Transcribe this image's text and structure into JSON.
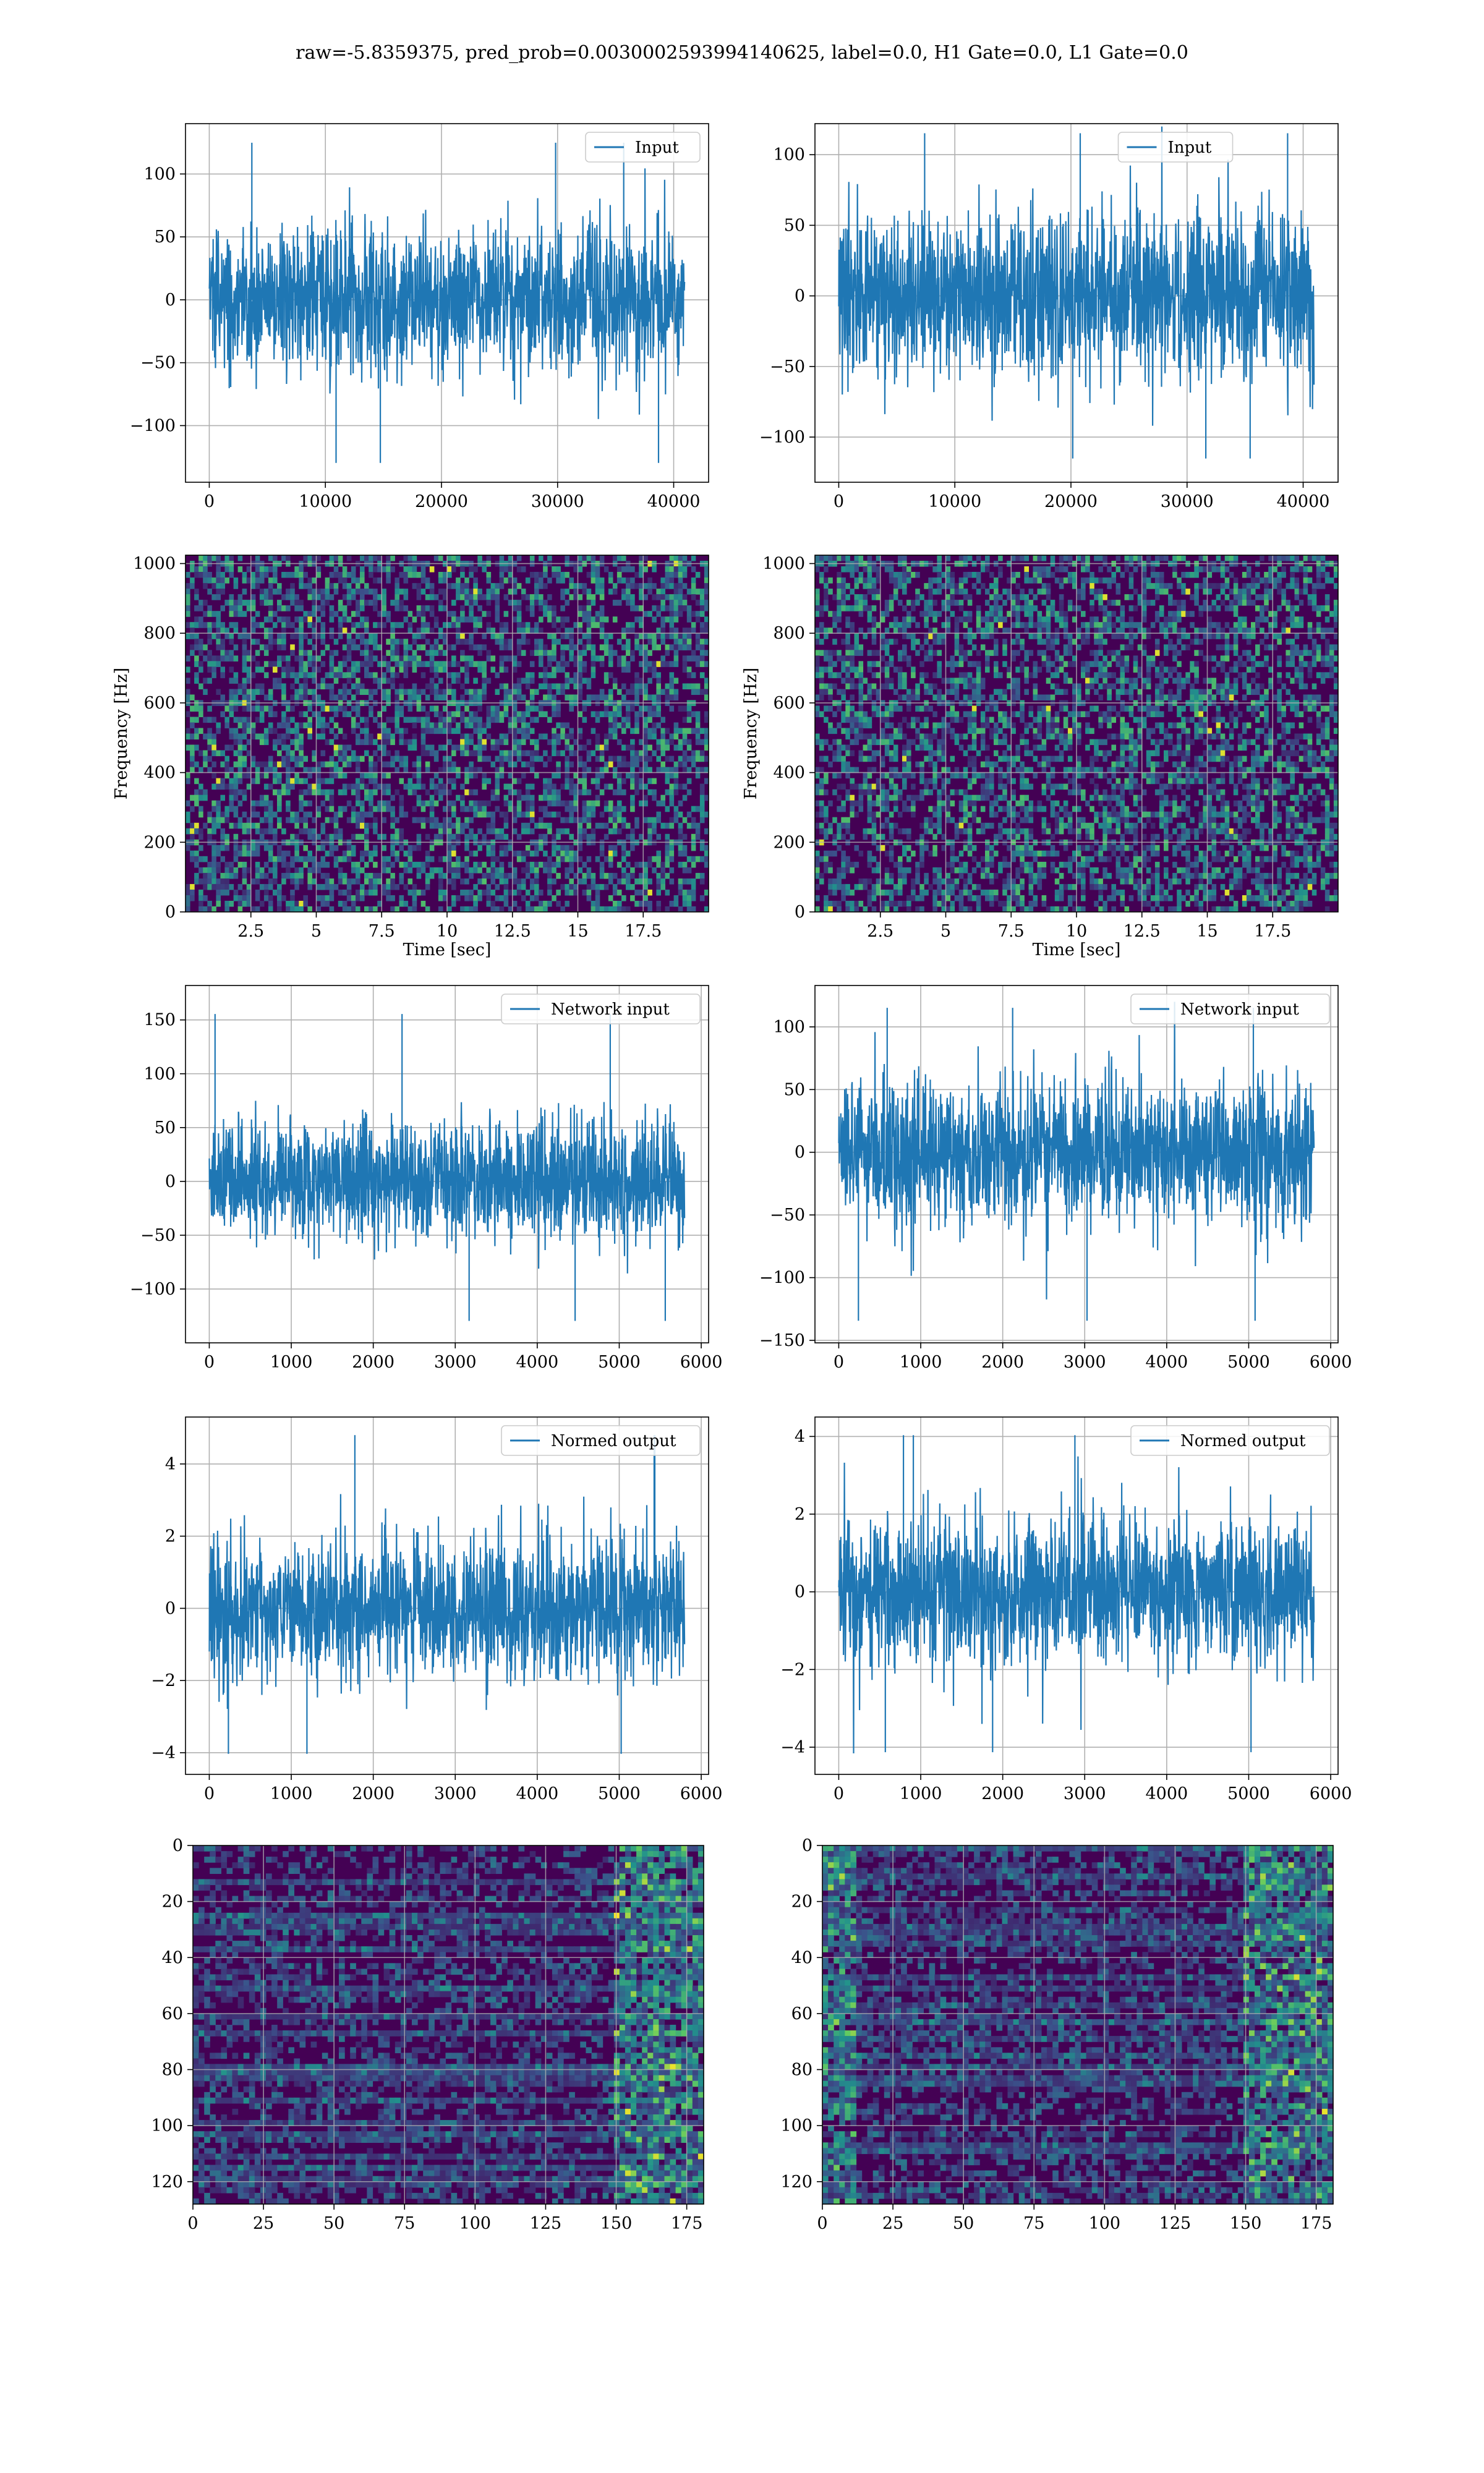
{
  "suptitle": "raw=-5.8359375, pred_prob=0.0030002593994140625, label=0.0, H1 Gate=0.0, L1 Gate=0.0",
  "colors": {
    "series": "#1f77b4",
    "grid": "#b0b0b0",
    "axes": "#000000",
    "viridis_low": "#440154",
    "viridis_mid": "#21918c",
    "viridis_high": "#fde725"
  },
  "chart_data": [
    {
      "id": "input-h1",
      "type": "line",
      "legend": [
        "Input"
      ],
      "legend_position": "top-right",
      "xlim": [
        -2048,
        43008
      ],
      "ylim": [
        -145,
        140
      ],
      "xticks": [
        0,
        10000,
        20000,
        30000,
        40000
      ],
      "yticks": [
        -100,
        -50,
        0,
        50,
        100
      ],
      "grid": true,
      "series": [
        {
          "name": "Input",
          "n_samples": 40960,
          "approx_std": 28,
          "y_min": -135,
          "y_max": 130
        }
      ]
    },
    {
      "id": "input-l1",
      "type": "line",
      "legend": [
        "Input"
      ],
      "legend_position": "top-center",
      "xlim": [
        -2048,
        43008
      ],
      "ylim": [
        -132,
        122
      ],
      "xticks": [
        0,
        10000,
        20000,
        30000,
        40000
      ],
      "yticks": [
        -100,
        -50,
        0,
        50,
        100
      ],
      "grid": true,
      "series": [
        {
          "name": "Input",
          "n_samples": 40960,
          "approx_std": 28,
          "y_min": -120,
          "y_max": 120
        }
      ]
    },
    {
      "id": "spectrogram-h1",
      "type": "heatmap",
      "colormap": "viridis",
      "xlabel": "Time [sec]",
      "ylabel": "Frequency [Hz]",
      "xlim": [
        0,
        20
      ],
      "ylim": [
        0,
        1024
      ],
      "xticks": [
        2.5,
        5.0,
        7.5,
        10.0,
        12.5,
        15.0,
        17.5
      ],
      "yticks": [
        0,
        200,
        400,
        600,
        800,
        1000
      ],
      "grid": true
    },
    {
      "id": "spectrogram-l1",
      "type": "heatmap",
      "colormap": "viridis",
      "xlabel": "Time [sec]",
      "ylabel": "Frequency [Hz]",
      "xlim": [
        0,
        20
      ],
      "ylim": [
        0,
        1024
      ],
      "xticks": [
        2.5,
        5.0,
        7.5,
        10.0,
        12.5,
        15.0,
        17.5
      ],
      "yticks": [
        0,
        200,
        400,
        600,
        800,
        1000
      ],
      "grid": true
    },
    {
      "id": "network-input-h1",
      "type": "line",
      "legend": [
        "Network input"
      ],
      "legend_position": "top-right",
      "xlim": [
        -290,
        6090
      ],
      "ylim": [
        -150,
        182
      ],
      "xticks": [
        0,
        1000,
        2000,
        3000,
        4000,
        5000,
        6000
      ],
      "yticks": [
        -100,
        -50,
        0,
        50,
        100,
        150
      ],
      "grid": true,
      "series": [
        {
          "name": "Network input",
          "n_samples": 5800,
          "approx_std": 28,
          "y_min": -135,
          "y_max": 162
        }
      ]
    },
    {
      "id": "network-input-l1",
      "type": "line",
      "legend": [
        "Network input"
      ],
      "legend_position": "top-right",
      "xlim": [
        -290,
        6090
      ],
      "ylim": [
        -152,
        133
      ],
      "xticks": [
        0,
        1000,
        2000,
        3000,
        4000,
        5000,
        6000
      ],
      "yticks": [
        -150,
        -100,
        -50,
        0,
        50,
        100
      ],
      "grid": true,
      "series": [
        {
          "name": "Network input",
          "n_samples": 5800,
          "approx_std": 28,
          "y_min": -140,
          "y_max": 120
        }
      ]
    },
    {
      "id": "normed-output-h1",
      "type": "line",
      "legend": [
        "Normed output"
      ],
      "legend_position": "top-right",
      "xlim": [
        -290,
        6090
      ],
      "ylim": [
        -4.6,
        5.3
      ],
      "xticks": [
        0,
        1000,
        2000,
        3000,
        4000,
        5000,
        6000
      ],
      "yticks": [
        -4,
        -2,
        0,
        2,
        4
      ],
      "grid": true,
      "series": [
        {
          "name": "Normed output",
          "n_samples": 5800,
          "approx_std": 0.95,
          "y_min": -4.2,
          "y_max": 5.0
        }
      ]
    },
    {
      "id": "normed-output-l1",
      "type": "line",
      "legend": [
        "Normed output"
      ],
      "legend_position": "top-right",
      "xlim": [
        -290,
        6090
      ],
      "ylim": [
        -4.7,
        4.5
      ],
      "xticks": [
        0,
        1000,
        2000,
        3000,
        4000,
        5000,
        6000
      ],
      "yticks": [
        -4,
        -2,
        0,
        2,
        4
      ],
      "grid": true,
      "series": [
        {
          "name": "Normed output",
          "n_samples": 5800,
          "approx_std": 0.95,
          "y_min": -4.3,
          "y_max": 4.2
        }
      ]
    },
    {
      "id": "feature-map-h1",
      "type": "heatmap",
      "colormap": "viridis",
      "xlim": [
        0,
        181
      ],
      "ylim": [
        128,
        0
      ],
      "xticks": [
        0,
        25,
        50,
        75,
        100,
        125,
        150,
        175
      ],
      "yticks": [
        0,
        20,
        40,
        60,
        80,
        100,
        120
      ],
      "grid": true
    },
    {
      "id": "feature-map-l1",
      "type": "heatmap",
      "colormap": "viridis",
      "xlim": [
        0,
        181
      ],
      "ylim": [
        128,
        0
      ],
      "xticks": [
        0,
        25,
        50,
        75,
        100,
        125,
        150,
        175
      ],
      "yticks": [
        0,
        20,
        40,
        60,
        80,
        100,
        120
      ],
      "grid": true
    }
  ]
}
